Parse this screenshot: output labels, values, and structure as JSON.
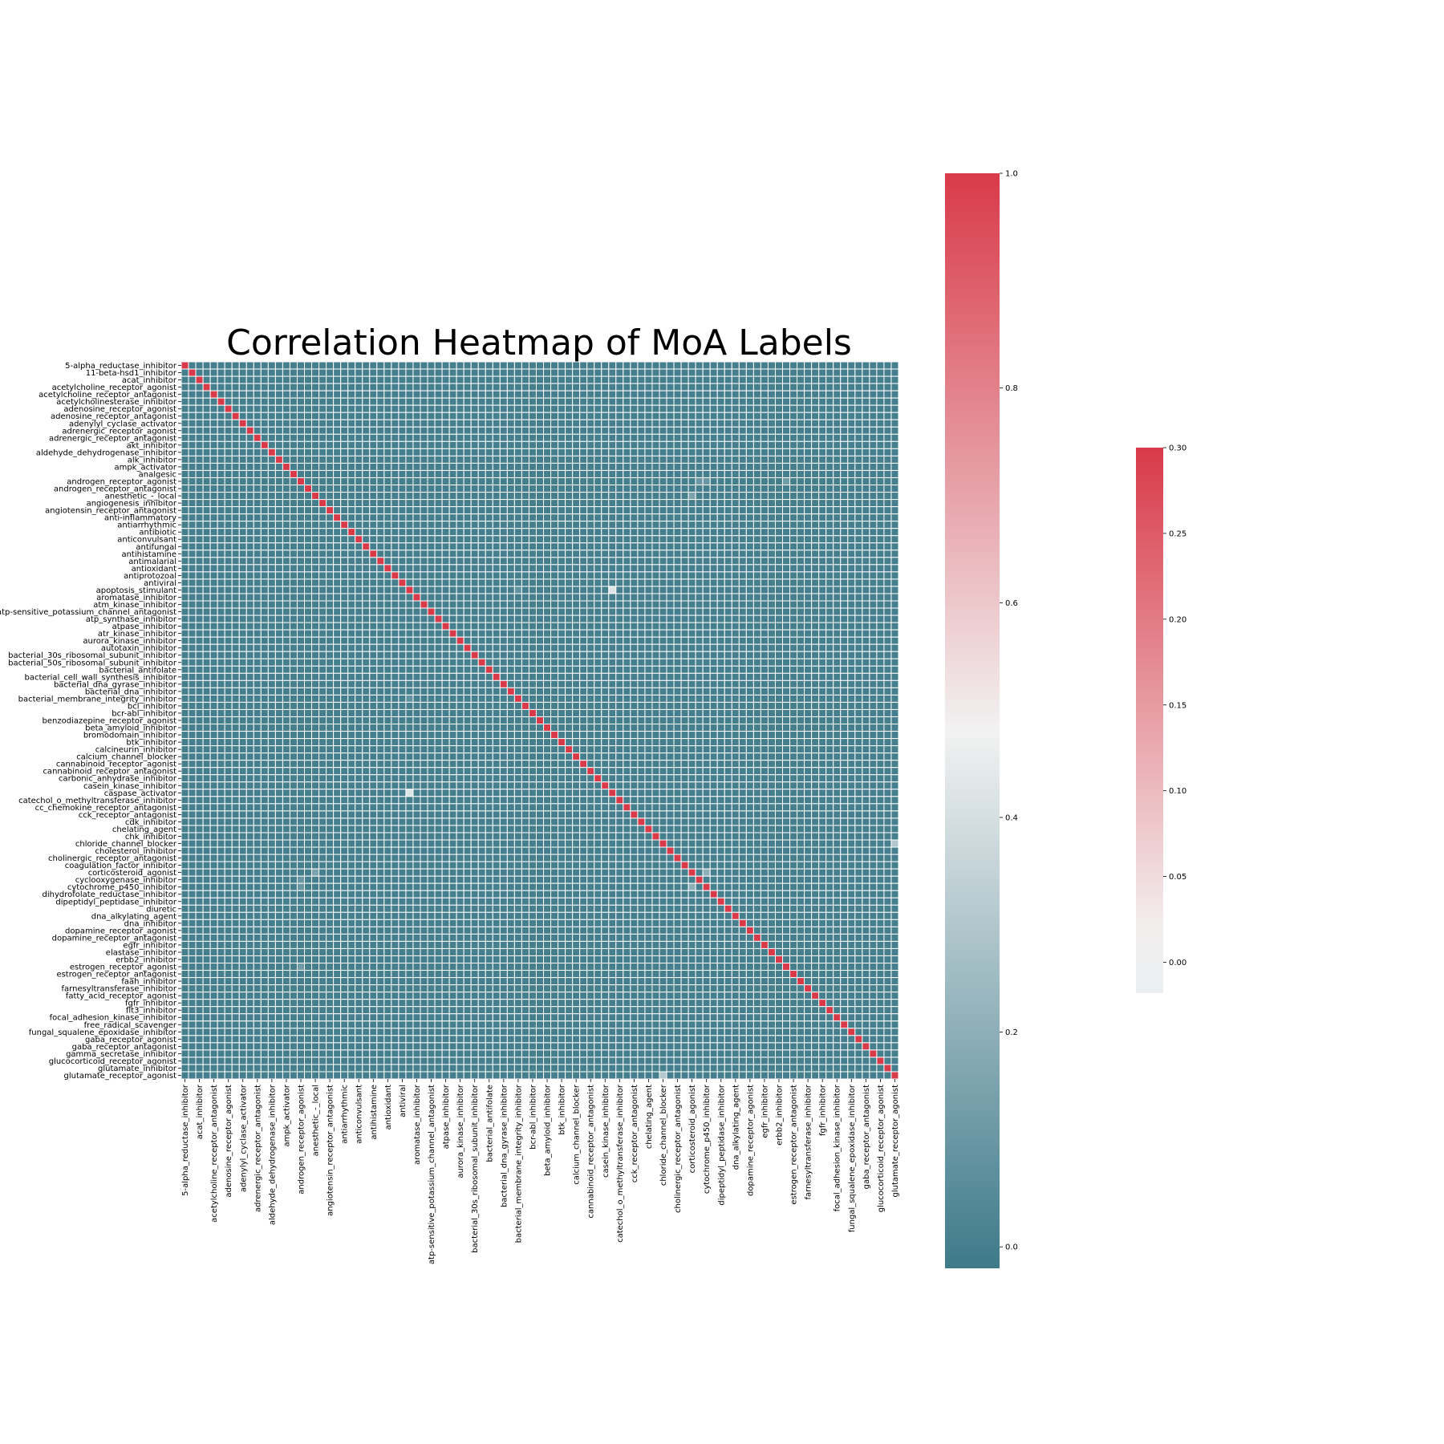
{
  "chart_data": {
    "type": "heatmap",
    "title": "Correlation Heatmap of MoA Labels",
    "xlabel": "",
    "ylabel": "",
    "grid": true,
    "labels": [
      "5-alpha_reductase_inhibitor",
      "11-beta-hsd1_inhibitor",
      "acat_inhibitor",
      "acetylcholine_receptor_agonist",
      "acetylcholine_receptor_antagonist",
      "acetylcholinesterase_inhibitor",
      "adenosine_receptor_agonist",
      "adenosine_receptor_antagonist",
      "adenylyl_cyclase_activator",
      "adrenergic_receptor_agonist",
      "adrenergic_receptor_antagonist",
      "akt_inhibitor",
      "aldehyde_dehydrogenase_inhibitor",
      "alk_inhibitor",
      "ampk_activator",
      "analgesic",
      "androgen_receptor_agonist",
      "androgen_receptor_antagonist",
      "anesthetic_-_local",
      "angiogenesis_inhibitor",
      "angiotensin_receptor_antagonist",
      "anti-inflammatory",
      "antiarrhythmic",
      "antibiotic",
      "anticonvulsant",
      "antifungal",
      "antihistamine",
      "antimalarial",
      "antioxidant",
      "antiprotozoal",
      "antiviral",
      "apoptosis_stimulant",
      "aromatase_inhibitor",
      "atm_kinase_inhibitor",
      "atp-sensitive_potassium_channel_antagonist",
      "atp_synthase_inhibitor",
      "atpase_inhibitor",
      "atr_kinase_inhibitor",
      "aurora_kinase_inhibitor",
      "autotaxin_inhibitor",
      "bacterial_30s_ribosomal_subunit_inhibitor",
      "bacterial_50s_ribosomal_subunit_inhibitor",
      "bacterial_antifolate",
      "bacterial_cell_wall_synthesis_inhibitor",
      "bacterial_dna_gyrase_inhibitor",
      "bacterial_dna_inhibitor",
      "bacterial_membrane_integrity_inhibitor",
      "bcl_inhibitor",
      "bcr-abl_inhibitor",
      "benzodiazepine_receptor_agonist",
      "beta_amyloid_inhibitor",
      "bromodomain_inhibitor",
      "btk_inhibitor",
      "calcineurin_inhibitor",
      "calcium_channel_blocker",
      "cannabinoid_receptor_agonist",
      "cannabinoid_receptor_antagonist",
      "carbonic_anhydrase_inhibitor",
      "casein_kinase_inhibitor",
      "caspase_activator",
      "catechol_o_methyltransferase_inhibitor",
      "cc_chemokine_receptor_antagonist",
      "cck_receptor_antagonist",
      "cdk_inhibitor",
      "chelating_agent",
      "chk_inhibitor",
      "chloride_channel_blocker",
      "cholesterol_inhibitor",
      "cholinergic_receptor_antagonist",
      "coagulation_factor_inhibitor",
      "corticosteroid_agonist",
      "cyclooxygenase_inhibitor",
      "cytochrome_p450_inhibitor",
      "dihydrofolate_reductase_inhibitor",
      "dipeptidyl_peptidase_inhibitor",
      "diuretic",
      "dna_alkylating_agent",
      "dna_inhibitor",
      "dopamine_receptor_agonist",
      "dopamine_receptor_antagonist",
      "egfr_inhibitor",
      "elastase_inhibitor",
      "erbb2_inhibitor",
      "estrogen_receptor_agonist",
      "estrogen_receptor_antagonist",
      "faah_inhibitor",
      "farnesyltransferase_inhibitor",
      "fatty_acid_receptor_agonist",
      "fgfr_inhibitor",
      "flt3_inhibitor",
      "focal_adhesion_kinase_inhibitor",
      "free_radical_scavenger",
      "fungal_squalene_epoxidase_inhibitor",
      "gaba_receptor_agonist",
      "gaba_receptor_antagonist",
      "gamma_secretase_inhibitor",
      "glucocorticoid_receptor_agonist",
      "glutamate_inhibitor",
      "glutamate_receptor_agonist"
    ],
    "diagonal_value": 1.0,
    "off_diagonal_default": 0.0,
    "notable_cells": [
      {
        "row": 31,
        "col": 59,
        "value": 0.42
      },
      {
        "row": 59,
        "col": 31,
        "value": 0.42
      },
      {
        "row": 66,
        "col": 98,
        "value": 0.3
      },
      {
        "row": 98,
        "col": 66,
        "value": 0.3
      },
      {
        "row": 70,
        "col": 72,
        "value": 0.2
      },
      {
        "row": 72,
        "col": 70,
        "value": 0.2
      },
      {
        "row": 18,
        "col": 70,
        "value": 0.15
      },
      {
        "row": 70,
        "col": 18,
        "value": 0.15
      },
      {
        "row": 83,
        "col": 16,
        "value": 0.12
      },
      {
        "row": 16,
        "col": 83,
        "value": 0.12
      },
      {
        "row": 16,
        "col": 72,
        "value": 0.1
      },
      {
        "row": 72,
        "col": 16,
        "value": 0.1
      },
      {
        "row": 46,
        "col": 31,
        "value": 0.08
      },
      {
        "row": 31,
        "col": 46,
        "value": 0.08
      },
      {
        "row": 71,
        "col": 16,
        "value": 0.1
      },
      {
        "row": 16,
        "col": 71,
        "value": 0.1
      }
    ],
    "colorbars": [
      {
        "ticks": [
          "1.0",
          "0.8",
          "0.6",
          "0.4",
          "0.2",
          "0.0"
        ],
        "range": [
          -0.02,
          1.0
        ],
        "colors": [
          "#3e7a8a",
          "#f2f2f2",
          "#d93a49"
        ]
      },
      {
        "ticks": [
          "0.30",
          "0.25",
          "0.20",
          "0.15",
          "0.10",
          "0.05",
          "0.00"
        ],
        "range": [
          -0.018,
          0.3
        ],
        "colors": [
          "#ecf0f2",
          "#f2f2f2",
          "#d93a49"
        ]
      }
    ]
  }
}
